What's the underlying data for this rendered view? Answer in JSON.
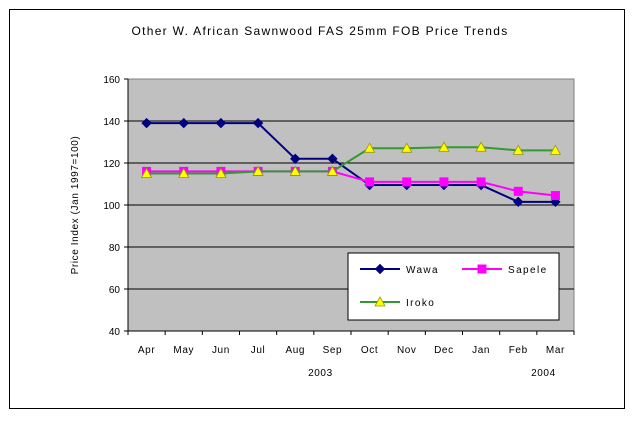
{
  "chart_data": {
    "type": "line",
    "title": "Other W. African Sawnwood FAS 25mm FOB Price Trends",
    "ylabel": "Price Index (Jan 1997=100)",
    "xlabel": "",
    "categories": [
      "Apr",
      "May",
      "Jun",
      "Jul",
      "Aug",
      "Sep",
      "Oct",
      "Nov",
      "Dec",
      "Jan",
      "Feb",
      "Mar"
    ],
    "year_labels": [
      {
        "label": "2003",
        "category": "Sep"
      },
      {
        "label": "2004",
        "category": "Mar"
      }
    ],
    "ylim": [
      40,
      160
    ],
    "yticks": [
      40,
      60,
      80,
      100,
      120,
      140,
      160
    ],
    "grid": true,
    "plot_background": "#c0c0c0",
    "legend_position": "bottom-right",
    "series": [
      {
        "name": "Wawa",
        "color": "#000080",
        "marker": "diamond",
        "values": [
          139,
          139,
          139,
          139,
          122,
          122,
          109.5,
          109.5,
          109.5,
          109.5,
          101.5,
          101.5
        ]
      },
      {
        "name": "Sapele",
        "color": "#ff00ff",
        "marker": "square",
        "values": [
          116,
          116,
          116,
          116,
          116,
          116,
          111,
          111,
          111,
          111,
          106.5,
          104.5
        ]
      },
      {
        "name": "Iroko",
        "color": "#339933",
        "marker": "triangle",
        "marker_color": "#ffff00",
        "values": [
          115,
          115,
          115,
          116,
          116,
          116,
          127,
          127,
          127.5,
          127.5,
          126,
          126
        ]
      }
    ]
  }
}
